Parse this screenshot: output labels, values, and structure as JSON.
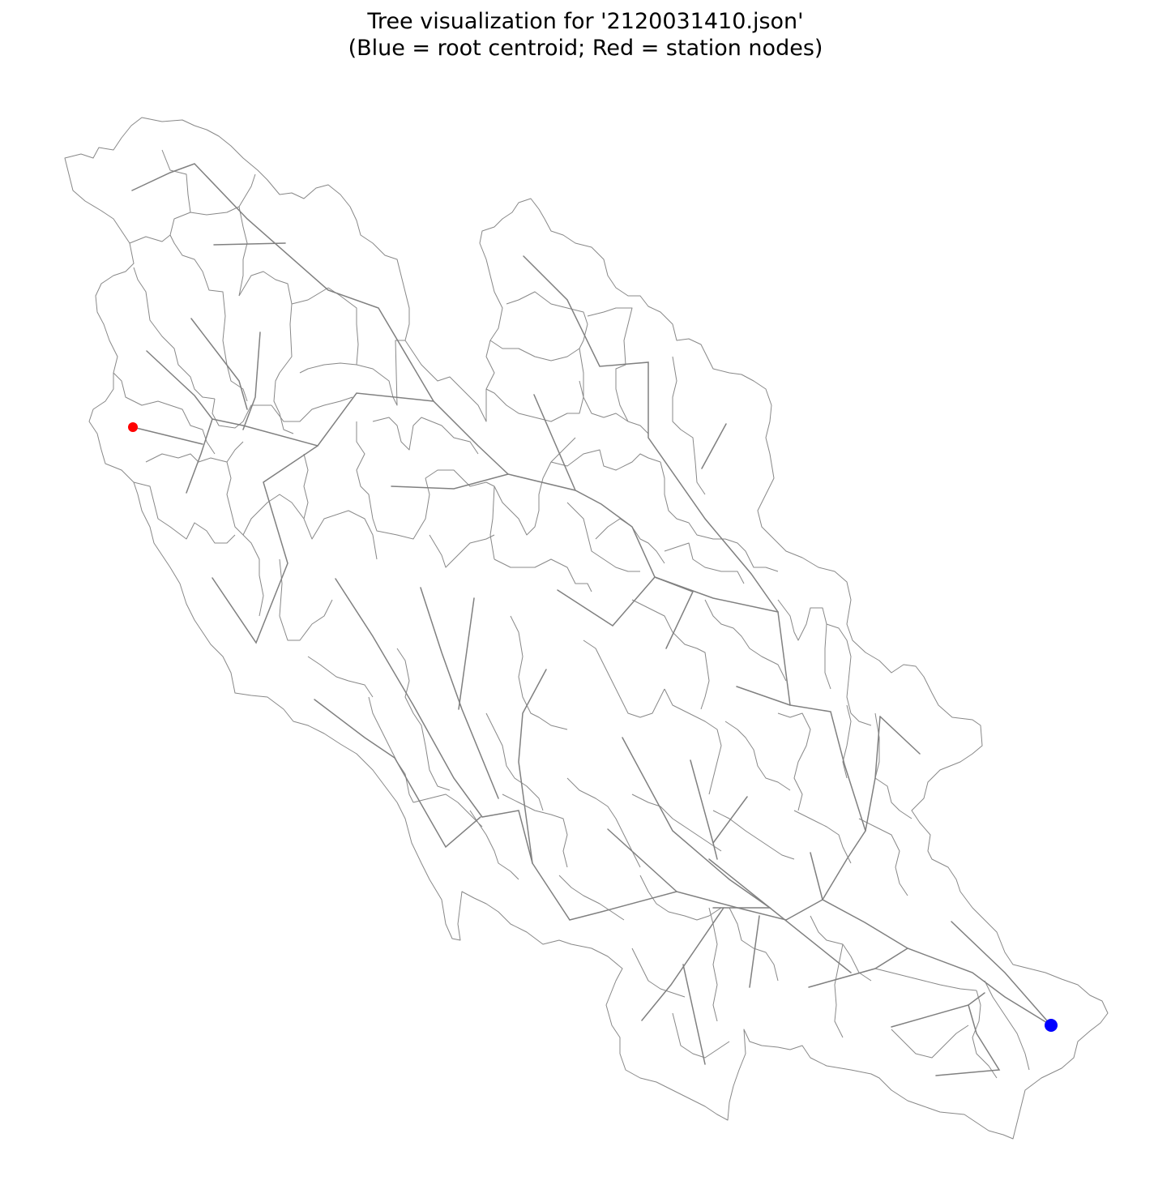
{
  "figure": {
    "title_line1": "Tree visualization for '2120031410.json'",
    "title_line2": "(Blue = root centroid; Red = station nodes)"
  },
  "legend": {
    "root_color": "#0000ff",
    "station_color": "#ff0000",
    "edge_color": "#808080",
    "boundary_color": "#888888"
  }
}
